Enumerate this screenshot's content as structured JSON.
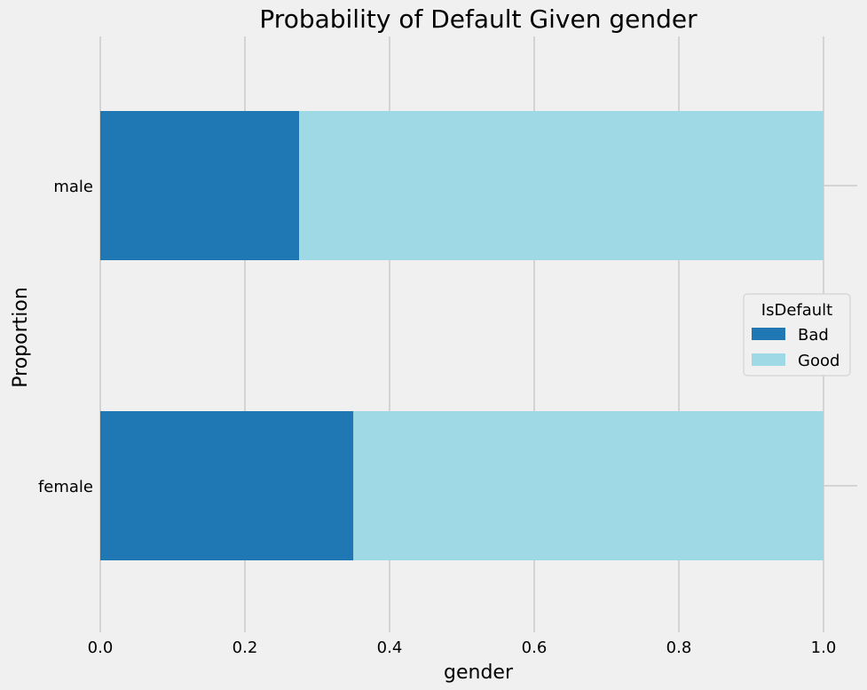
{
  "chart_data": {
    "type": "bar",
    "orientation": "horizontal",
    "stacked": true,
    "title": "Probability of Default Given gender",
    "xlabel": "gender",
    "ylabel": "Proportion",
    "categories": [
      "female",
      "male"
    ],
    "series": [
      {
        "name": "Bad",
        "values": [
          0.35,
          0.275
        ],
        "color": "#1f77b4"
      },
      {
        "name": "Good",
        "values": [
          0.65,
          0.725
        ],
        "color": "#9ed9e5"
      }
    ],
    "xlim": [
      0.0,
      1.05
    ],
    "xticks": [
      "0.0",
      "0.2",
      "0.4",
      "0.6",
      "0.8",
      "1.0"
    ],
    "grid": "vertical",
    "legend": {
      "title": "IsDefault",
      "placement": "center-right"
    }
  }
}
